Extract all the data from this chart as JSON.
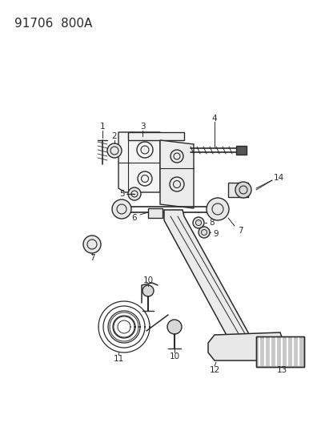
{
  "title": "91706  800A",
  "bg_color": "#ffffff",
  "line_color": "#2a2a2a",
  "title_fontsize": 11,
  "label_fontsize": 7.5,
  "fig_width": 4.01,
  "fig_height": 5.33,
  "dpi": 100
}
